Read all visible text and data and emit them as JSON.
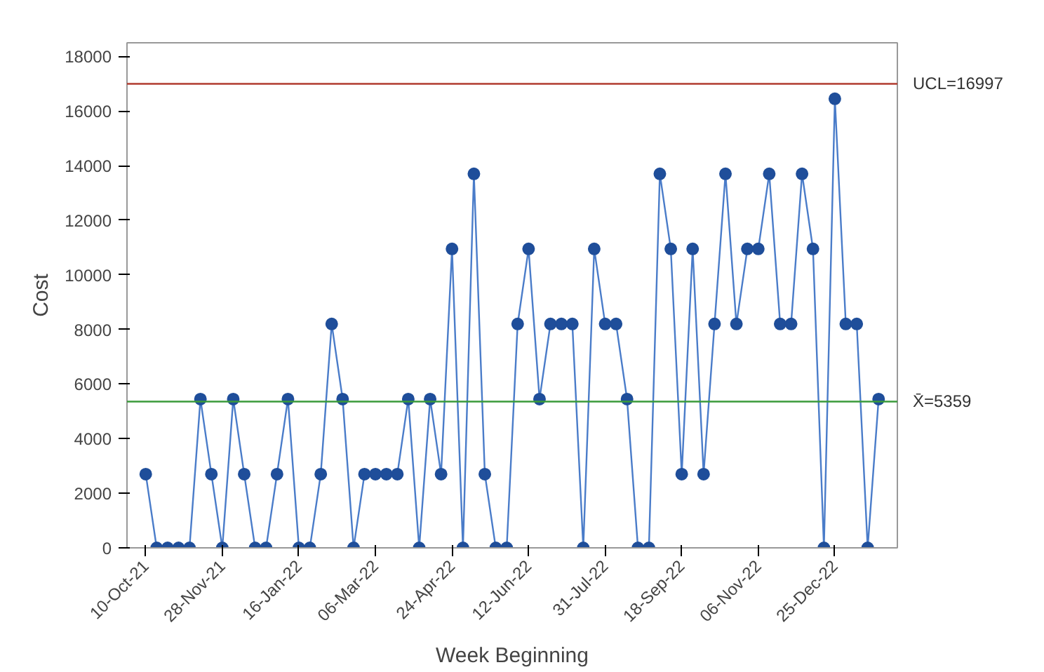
{
  "chart_data": {
    "type": "line",
    "xlabel": "Week Beginning",
    "ylabel": "Cost",
    "x": [
      "2021-10-10",
      "2021-10-17",
      "2021-10-24",
      "2021-10-31",
      "2021-11-07",
      "2021-11-14",
      "2021-11-21",
      "2021-11-28",
      "2021-12-05",
      "2021-12-12",
      "2021-12-19",
      "2021-12-26",
      "2022-01-02",
      "2022-01-09",
      "2022-01-16",
      "2022-01-23",
      "2022-01-30",
      "2022-02-06",
      "2022-02-13",
      "2022-02-20",
      "2022-02-27",
      "2022-03-06",
      "2022-03-13",
      "2022-03-20",
      "2022-03-27",
      "2022-04-03",
      "2022-04-10",
      "2022-04-17",
      "2022-04-24",
      "2022-05-01",
      "2022-05-08",
      "2022-05-15",
      "2022-05-22",
      "2022-05-29",
      "2022-06-05",
      "2022-06-12",
      "2022-06-19",
      "2022-06-26",
      "2022-07-03",
      "2022-07-10",
      "2022-07-17",
      "2022-07-24",
      "2022-07-31",
      "2022-08-07",
      "2022-08-14",
      "2022-08-21",
      "2022-08-28",
      "2022-09-04",
      "2022-09-11",
      "2022-09-18",
      "2022-09-25",
      "2022-10-02",
      "2022-10-09",
      "2022-10-16",
      "2022-10-23",
      "2022-10-30",
      "2022-11-06",
      "2022-11-13",
      "2022-11-20",
      "2022-11-27",
      "2022-12-04",
      "2022-12-11",
      "2022-12-18",
      "2022-12-25",
      "2023-01-01",
      "2023-01-08",
      "2023-01-15",
      "2023-01-22"
    ],
    "series": [
      {
        "color": "#1f4e9a",
        "values": [
          2700,
          0,
          0,
          0,
          0,
          5450,
          2700,
          0,
          5450,
          2700,
          0,
          0,
          2700,
          5450,
          0,
          0,
          2700,
          8200,
          5450,
          0,
          2700,
          2700,
          2700,
          2700,
          5450,
          0,
          5450,
          2700,
          10950,
          0,
          13700,
          2700,
          0,
          0,
          8200,
          10950,
          5450,
          8200,
          8200,
          8200,
          0,
          10950,
          8200,
          8200,
          5450,
          0,
          0,
          13700,
          10950,
          2700,
          10950,
          2700,
          8200,
          13700,
          8200,
          10950,
          10950,
          13700,
          8200,
          8200,
          13700,
          10950,
          0,
          16450,
          8200,
          8200,
          0,
          5450
        ]
      }
    ],
    "xlim": [
      "2021-09-28",
      "2023-02-03"
    ],
    "xticks": [
      {
        "value": "2021-10-10",
        "label": "10-Oct-21"
      },
      {
        "value": "2021-11-28",
        "label": "28-Nov-21"
      },
      {
        "value": "2022-01-16",
        "label": "16-Jan-22"
      },
      {
        "value": "2022-03-06",
        "label": "06-Mar-22"
      },
      {
        "value": "2022-04-24",
        "label": "24-Apr-22"
      },
      {
        "value": "2022-06-12",
        "label": "12-Jun-22"
      },
      {
        "value": "2022-07-31",
        "label": "31-Jul-22"
      },
      {
        "value": "2022-09-18",
        "label": "18-Sep-22"
      },
      {
        "value": "2022-11-06",
        "label": "06-Nov-22"
      },
      {
        "value": "2022-12-25",
        "label": "25-Dec-22"
      }
    ],
    "ylim": [
      0,
      18500
    ],
    "yticks": [
      0,
      2000,
      4000,
      6000,
      8000,
      10000,
      12000,
      14000,
      16000,
      18000
    ],
    "ref_lines": [
      {
        "axis": "y",
        "value": 16997,
        "label": "UCL=16997",
        "color": "#b03a2e"
      },
      {
        "axis": "y",
        "value": 5359,
        "label": "X̄=5359",
        "color": "#3a9a3a"
      }
    ],
    "marker": "circle",
    "line_style": "solid",
    "grid": false
  }
}
